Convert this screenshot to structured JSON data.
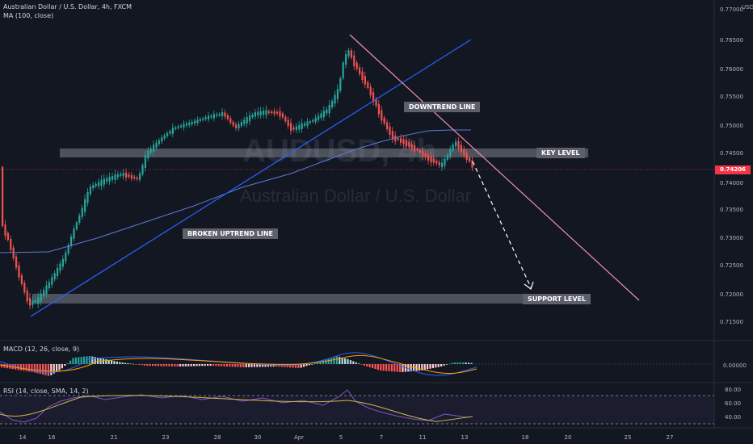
{
  "header": {
    "symbol_line": "Australian Dollar / U.S. Dollar, 4h, FXCM",
    "ma_label": "MA (100, close)",
    "currency": "USD"
  },
  "watermark": {
    "ticker": "AUDUSD, 4h",
    "name": "Australian Dollar / U.S. Dollar"
  },
  "price_axis": [
    "0.77000",
    "0.76500",
    "0.76000",
    "0.75500",
    "0.75000",
    "0.74500",
    "0.74000",
    "0.73500",
    "0.73000",
    "0.72500",
    "0.72000",
    "0.71500"
  ],
  "last_price": "0.74206",
  "annotations": {
    "downtrend": "DOWNTREND LINE",
    "key_level": "KEY LEVEL",
    "broken_uptrend": "BROKEN UPTREND LINE",
    "support": "SUPPORT LEVEL"
  },
  "macd": {
    "label": "MACD (12, 26, close, 9)",
    "axis": [
      "0.00000"
    ]
  },
  "rsi": {
    "label": "RSI (14, close, SMA, 14, 2)",
    "axis": [
      "80.00",
      "60.00",
      "40.00"
    ]
  },
  "time_axis": [
    "14",
    "16",
    "21",
    "23",
    "28",
    "30",
    "Apr",
    "5",
    "7",
    "11",
    "13",
    "18",
    "20",
    "25",
    "27"
  ],
  "colors": {
    "background": "#131722",
    "up_candle": "#26a69a",
    "down_candle": "#ef5350",
    "uptrend_line": "#2962ff",
    "downtrend_line": "#f48fb1",
    "ma_line": "#5b7bd6",
    "zone": "#9598a1"
  }
}
